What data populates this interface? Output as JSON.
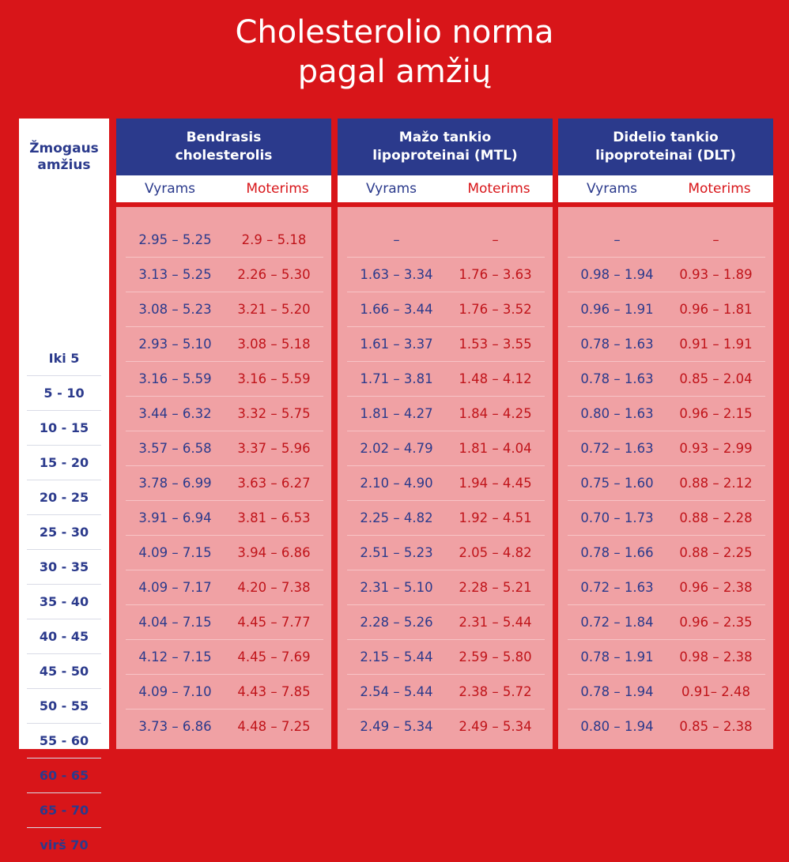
{
  "title": {
    "line1": "Cholesterolio norma",
    "line2": "pagal amžių"
  },
  "age_header": {
    "line1": "Žmogaus",
    "line2": "amžius"
  },
  "ages": [
    "Iki 5",
    "5 - 10",
    "10 - 15",
    "15 - 20",
    "20 - 25",
    "25 - 30",
    "30 - 35",
    "35 - 40",
    "40 - 45",
    "45 - 50",
    "50 - 55",
    "55 - 60",
    "60 - 65",
    "65 - 70",
    "virš 70"
  ],
  "groups": [
    {
      "line1": "Bendrasis",
      "line2": "cholesterolis",
      "male_label": "Vyrams",
      "female_label": "Moterims",
      "rows": [
        [
          "2.95 – 5.25",
          "2.9 – 5.18"
        ],
        [
          "3.13 – 5.25",
          "2.26 – 5.30"
        ],
        [
          "3.08 – 5.23",
          "3.21 – 5.20"
        ],
        [
          "2.93 – 5.10",
          "3.08 – 5.18"
        ],
        [
          "3.16 – 5.59",
          "3.16 – 5.59"
        ],
        [
          "3.44 – 6.32",
          "3.32 – 5.75"
        ],
        [
          "3.57 – 6.58",
          "3.37 – 5.96"
        ],
        [
          "3.78 – 6.99",
          "3.63 – 6.27"
        ],
        [
          "3.91 – 6.94",
          "3.81 – 6.53"
        ],
        [
          "4.09 – 7.15",
          "3.94 – 6.86"
        ],
        [
          "4.09 – 7.17",
          "4.20 – 7.38"
        ],
        [
          "4.04 – 7.15",
          "4.45 – 7.77"
        ],
        [
          "4.12 – 7.15",
          "4.45 – 7.69"
        ],
        [
          "4.09 – 7.10",
          "4.43 – 7.85"
        ],
        [
          "3.73 – 6.86",
          "4.48 – 7.25"
        ]
      ]
    },
    {
      "line1": "Mažo tankio",
      "line2": "lipoproteinai (MTL)",
      "male_label": "Vyrams",
      "female_label": "Moterims",
      "rows": [
        [
          "–",
          "–"
        ],
        [
          "1.63 – 3.34",
          "1.76 – 3.63"
        ],
        [
          "1.66 – 3.44",
          "1.76 – 3.52"
        ],
        [
          "1.61 – 3.37",
          "1.53 – 3.55"
        ],
        [
          "1.71 – 3.81",
          "1.48 – 4.12"
        ],
        [
          "1.81 – 4.27",
          "1.84 – 4.25"
        ],
        [
          "2.02 – 4.79",
          "1.81 – 4.04"
        ],
        [
          "2.10 – 4.90",
          "1.94 – 4.45"
        ],
        [
          "2.25 – 4.82",
          "1.92 – 4.51"
        ],
        [
          "2.51 – 5.23",
          "2.05 – 4.82"
        ],
        [
          "2.31 – 5.10",
          "2.28 – 5.21"
        ],
        [
          "2.28 – 5.26",
          "2.31 – 5.44"
        ],
        [
          "2.15 – 5.44",
          "2.59 – 5.80"
        ],
        [
          "2.54 – 5.44",
          "2.38 – 5.72"
        ],
        [
          "2.49 – 5.34",
          "2.49 – 5.34"
        ]
      ]
    },
    {
      "line1": "Didelio tankio",
      "line2": "lipoproteinai (DLT)",
      "male_label": "Vyrams",
      "female_label": "Moterims",
      "rows": [
        [
          "–",
          "–"
        ],
        [
          "0.98 – 1.94",
          "0.93 – 1.89"
        ],
        [
          "0.96 – 1.91",
          "0.96 – 1.81"
        ],
        [
          "0.78 – 1.63",
          "0.91 – 1.91"
        ],
        [
          "0.78 – 1.63",
          "0.85 – 2.04"
        ],
        [
          "0.80 – 1.63",
          "0.96 – 2.15"
        ],
        [
          "0.72 – 1.63",
          "0.93 – 2.99"
        ],
        [
          "0.75 – 1.60",
          "0.88 – 2.12"
        ],
        [
          "0.70 – 1.73",
          "0.88 – 2.28"
        ],
        [
          "0.78 – 1.66",
          "0.88 – 2.25"
        ],
        [
          "0.72 – 1.63",
          "0.96 – 2.38"
        ],
        [
          "0.72 – 1.84",
          "0.96 – 2.35"
        ],
        [
          "0.78 – 1.91",
          "0.98 – 2.38"
        ],
        [
          "0.78 – 1.94",
          "0.91– 2.48"
        ],
        [
          "0.80 – 1.94",
          "0.85 – 2.38"
        ]
      ]
    }
  ]
}
